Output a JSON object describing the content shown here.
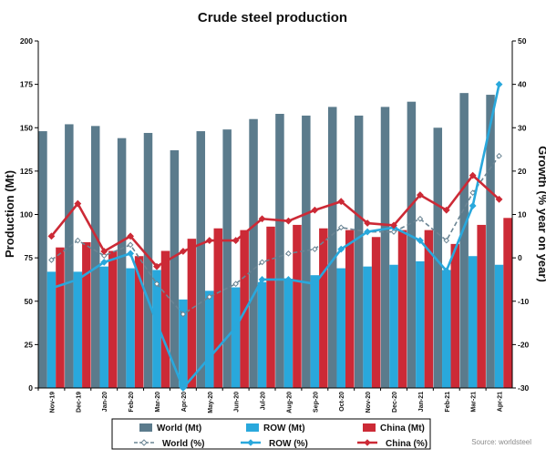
{
  "chart_data": {
    "type": "bar",
    "title": "Crude steel production",
    "ylabel": "Production (Mt)",
    "y2label": "Growth (% year on year)",
    "ylim": [
      0,
      200
    ],
    "y2lim": [
      -30,
      50
    ],
    "yticks": [
      0,
      25,
      50,
      75,
      100,
      125,
      150,
      175,
      200
    ],
    "y2ticks": [
      -30,
      -20,
      -10,
      0,
      10,
      20,
      30,
      40,
      50
    ],
    "categories": [
      "Nov-19",
      "Dec-19",
      "Jan-20",
      "Feb-20",
      "Mar-20",
      "Apr-20",
      "May-20",
      "Jun-20",
      "Jul-20",
      "Aug-20",
      "Sep-20",
      "Oct-20",
      "Nov-20",
      "Dec-20",
      "Jan-21",
      "Feb-21",
      "Mar-21",
      "Apr-21"
    ],
    "bar_series": [
      {
        "name": "World (Mt)",
        "color": "#5b7b8c",
        "values": [
          148,
          152,
          151,
          144,
          147,
          137,
          148,
          149,
          155,
          158,
          157,
          162,
          157,
          162,
          165,
          150,
          170,
          169
        ]
      },
      {
        "name": "ROW (Mt)",
        "color": "#29a8dc",
        "values": [
          67,
          67,
          70,
          69,
          68,
          51,
          56,
          58,
          61,
          63,
          65,
          69,
          70,
          71,
          73,
          68,
          76,
          71
        ]
      },
      {
        "name": "China (Mt)",
        "color": "#cc2a36",
        "values": [
          81,
          84,
          79,
          76,
          79,
          86,
          92,
          91,
          93,
          94,
          92,
          91,
          87,
          91,
          91,
          83,
          94,
          98
        ]
      }
    ],
    "line_series": [
      {
        "name": "World (%)",
        "color": "#6b8594",
        "values": [
          -0.5,
          4,
          0.5,
          3,
          -6,
          -13,
          -9,
          -6,
          -1,
          1,
          2,
          7,
          6,
          6,
          9,
          4,
          15,
          23.5
        ]
      },
      {
        "name": "ROW (%)",
        "color": "#29a8dc",
        "values": [
          -7,
          -5,
          -1,
          1,
          -15,
          -30,
          -23,
          -16,
          -5,
          -5,
          -6,
          2,
          6,
          7,
          4,
          -3,
          12,
          40
        ]
      },
      {
        "name": "China (%)",
        "color": "#cc2a36",
        "values": [
          5,
          12.5,
          1.5,
          5,
          -2,
          1.5,
          4,
          4,
          9,
          8.5,
          11,
          13,
          8,
          7.5,
          14.5,
          11,
          19,
          13.5
        ]
      }
    ],
    "grid": false,
    "legend_position": "bottom",
    "source": "Source: worldsteel"
  }
}
